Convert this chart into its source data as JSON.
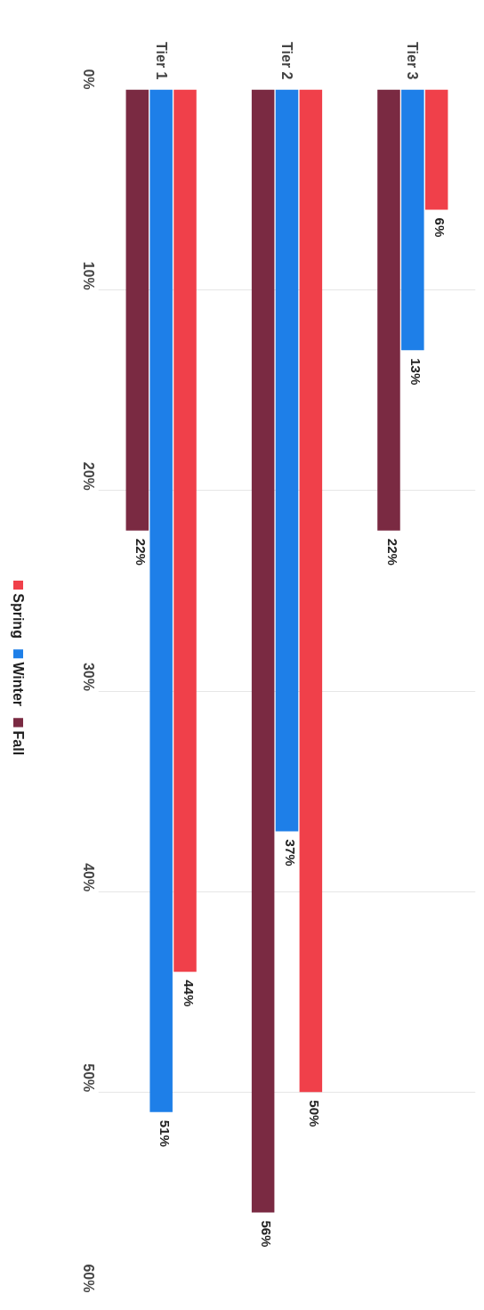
{
  "chart_data": {
    "type": "bar",
    "categories": [
      "Tier 1",
      "Tier 2",
      "Tier 3"
    ],
    "series": [
      {
        "name": "Fall",
        "color": "#7a2a42",
        "values": [
          22,
          56,
          22
        ]
      },
      {
        "name": "Winter",
        "color": "#1e7fe8",
        "values": [
          51,
          37,
          13
        ]
      },
      {
        "name": "Spring",
        "color": "#f0404a",
        "values": [
          44,
          50,
          6
        ]
      }
    ],
    "ylim": [
      60,
      0
    ],
    "yticks": [
      {
        "value": 0,
        "label": "0%"
      },
      {
        "value": 10,
        "label": "10%"
      },
      {
        "value": 20,
        "label": "20%"
      },
      {
        "value": 30,
        "label": "30%"
      },
      {
        "value": 40,
        "label": "40%"
      },
      {
        "value": 50,
        "label": "50%"
      },
      {
        "value": 60,
        "label": "60%"
      }
    ],
    "value_labels": [
      [
        "22%",
        "56%",
        "22%"
      ],
      [
        "51%",
        "37%",
        "13%"
      ],
      [
        "44%",
        "50%",
        "6%"
      ]
    ],
    "grid": "y",
    "legend": "left"
  }
}
